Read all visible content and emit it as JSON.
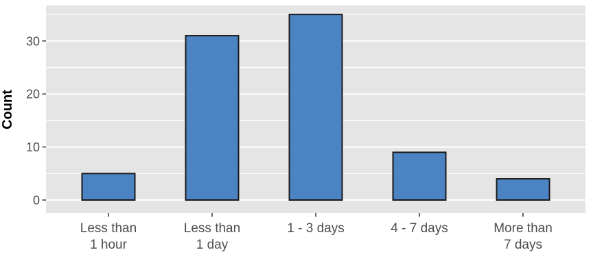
{
  "chart_data": {
    "type": "bar",
    "title": "",
    "xlabel": "",
    "ylabel": "Count",
    "categories": [
      "Less than 1 hour",
      "Less than 1 day",
      "1 - 3 days",
      "4 - 7 days",
      "More than 7 days"
    ],
    "category_lines": [
      [
        "Less than",
        "1 hour"
      ],
      [
        "Less than",
        "1 day"
      ],
      [
        "1 - 3 days"
      ],
      [
        "4 - 7 days"
      ],
      [
        "More than",
        "7 days"
      ]
    ],
    "values": [
      5,
      31,
      35,
      9,
      4
    ],
    "yticks": [
      0,
      10,
      20,
      30
    ],
    "minor_gridlines": [
      5,
      15,
      25,
      35
    ],
    "ylim": [
      0,
      36.75
    ],
    "grid": true,
    "legend": "none",
    "style": {
      "bar_fill": "#4C83C3",
      "bar_stroke": "#1A1A1A",
      "panel_bg": "#E5E5E5",
      "grid_major_color": "#FFFFFF",
      "grid_minor_color": "#FFFFFF",
      "tick_color": "#333333",
      "axis_text_color": "#4D4D4D",
      "axis_title_color": "#000000"
    }
  }
}
